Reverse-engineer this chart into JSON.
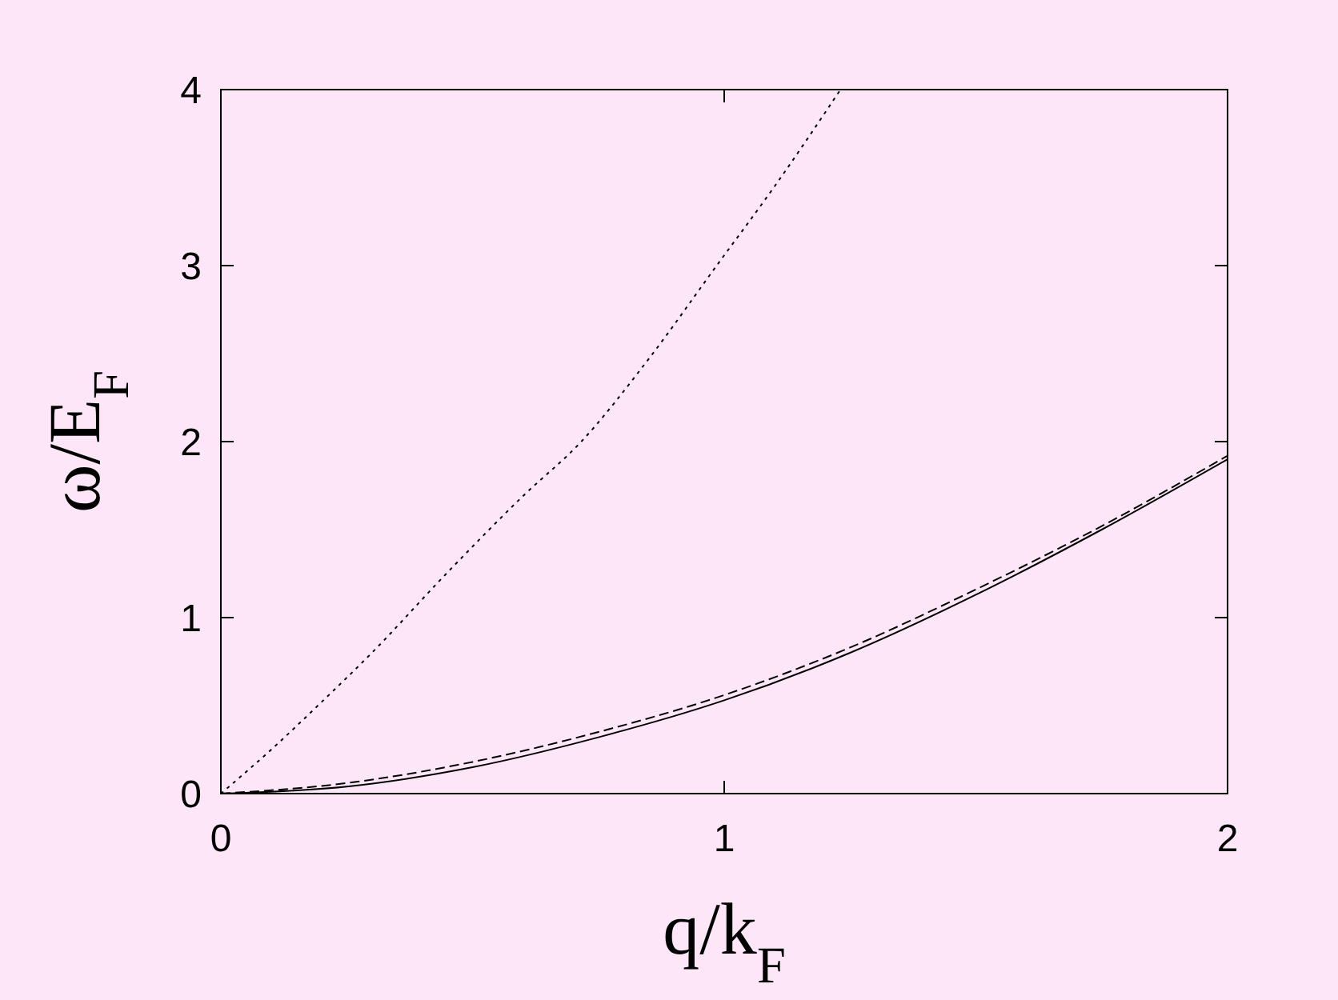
{
  "chart_data": {
    "type": "line",
    "xlabel": "q/k$_{F}$",
    "ylabel": "ω/E$_{F}$",
    "xlim": [
      0,
      2
    ],
    "ylim": [
      0,
      4
    ],
    "xticks": [
      0,
      1,
      2
    ],
    "yticks": [
      0,
      1,
      2,
      3,
      4
    ],
    "marker": "none",
    "series": [
      {
        "color": "#000000",
        "line_style": "solid",
        "x": [
          0,
          0.25,
          0.5,
          0.75,
          1,
          1.25,
          1.5,
          1.75,
          2
        ],
        "values": [
          0,
          0.04,
          0.15,
          0.32,
          0.53,
          0.8,
          1.13,
          1.5,
          1.9
        ]
      },
      {
        "color": "#000000",
        "line_style": "dashed",
        "x": [
          0,
          0.25,
          0.5,
          0.75,
          1,
          1.25,
          1.5,
          1.75,
          2
        ],
        "values": [
          0,
          0.06,
          0.18,
          0.35,
          0.56,
          0.83,
          1.16,
          1.52,
          1.92
        ]
      },
      {
        "color": "#000000",
        "line_style": "dotted",
        "x": [
          0,
          0.1,
          0.2,
          0.3,
          0.448,
          0.6,
          0.716,
          0.85,
          0.985,
          1.1,
          1.231
        ],
        "values": [
          0,
          0.25,
          0.52,
          0.8,
          1.25,
          1.69,
          2.0,
          2.47,
          3.0,
          3.45,
          4.0
        ]
      }
    ]
  }
}
